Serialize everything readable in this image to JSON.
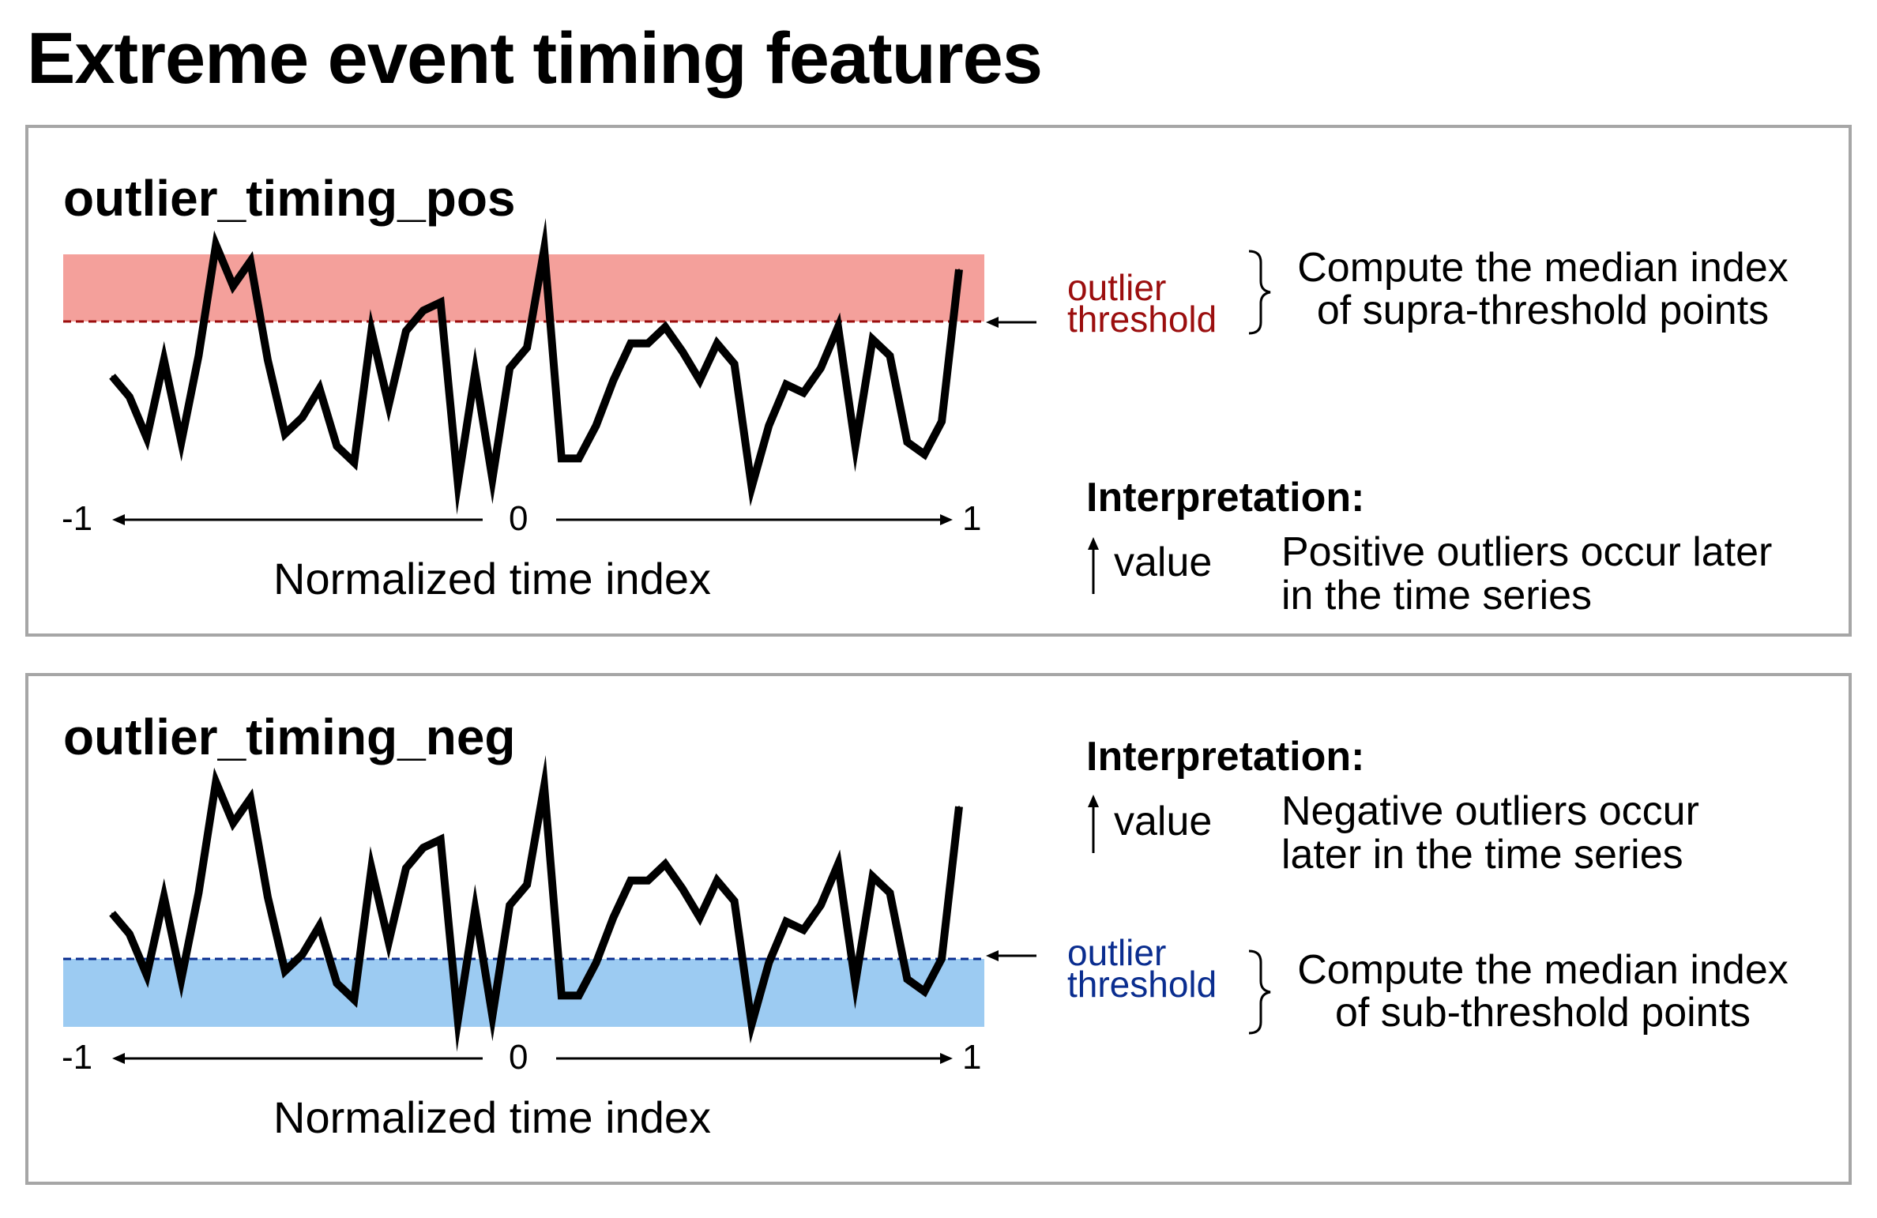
{
  "title": "Extreme event timing features",
  "colors": {
    "pos_region": "#f4a09b",
    "pos_threshold": "#9b0e0e",
    "neg_region": "#9ccbf2",
    "neg_threshold": "#0a2d8f",
    "border": "#a6a6a6"
  },
  "axis": {
    "tick_left": "-1",
    "tick_mid": "0",
    "tick_right": "1",
    "label": "Normalized time index"
  },
  "series": [
    -0.02,
    -0.07,
    -0.17,
    0.02,
    -0.18,
    0.03,
    0.3,
    0.2,
    0.26,
    0.02,
    -0.16,
    -0.12,
    -0.05,
    -0.19,
    -0.23,
    0.09,
    -0.09,
    0.09,
    0.14,
    0.16,
    -0.28,
    -0.01,
    -0.27,
    0.0,
    0.05,
    0.29,
    -0.22,
    -0.22,
    -0.14,
    -0.03,
    0.06,
    0.06,
    0.1,
    0.04,
    -0.03,
    0.06,
    0.01,
    -0.29,
    -0.14,
    -0.04,
    -0.06,
    0.0,
    0.1,
    -0.19,
    0.07,
    0.03,
    -0.18,
    -0.21,
    -0.13,
    0.24
  ],
  "panels": [
    {
      "title": "outlier_timing_pos",
      "threshold_label_1": "outlier",
      "threshold_label_2": "threshold",
      "method_1": "Compute the median index",
      "method_2": "of supra-threshold points",
      "interp_head": "Interpretation:",
      "interp_value": "value",
      "interp_1": "Positive outliers occur later",
      "interp_2": "in the time series"
    },
    {
      "title": "outlier_timing_neg",
      "threshold_label_1": "outlier",
      "threshold_label_2": "threshold",
      "method_1": "Compute the median index",
      "method_2": "of sub-threshold points",
      "interp_head": "Interpretation:",
      "interp_value": "value",
      "interp_1": "Negative outliers occur",
      "interp_2": "later in the time series"
    }
  ]
}
